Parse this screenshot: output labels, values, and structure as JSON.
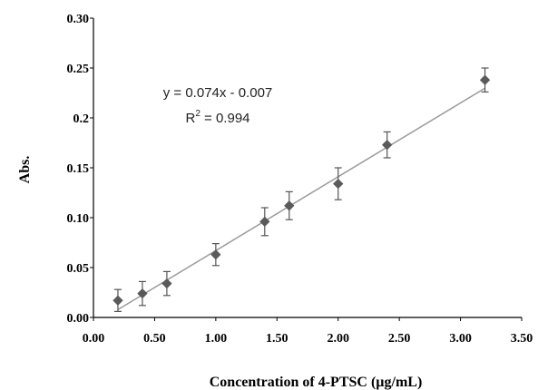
{
  "chart_data": {
    "type": "scatter",
    "title": "",
    "xlabel": "Concentration of 4-PTSC (µg/mL)",
    "ylabel": "Abs.",
    "xlim": [
      0,
      3.5
    ],
    "ylim": [
      0,
      0.3
    ],
    "x_ticks": [
      "0.00",
      "0.50",
      "1.00",
      "1.50",
      "2.00",
      "2.50",
      "3.00",
      "3.50"
    ],
    "y_ticks": [
      "0.00",
      "0.05",
      "0.10",
      "0.15",
      "0.2",
      "0.25",
      "0.30"
    ],
    "grid": false,
    "series": [
      {
        "x": [
          0.2,
          0.4,
          0.6,
          1.0,
          1.4,
          1.6,
          2.0,
          2.4,
          3.2
        ],
        "y": [
          0.017,
          0.024,
          0.034,
          0.063,
          0.096,
          0.112,
          0.134,
          0.173,
          0.238
        ],
        "error": [
          0.011,
          0.012,
          0.012,
          0.011,
          0.014,
          0.014,
          0.016,
          0.013,
          0.012
        ]
      }
    ],
    "fit": {
      "slope": 0.074,
      "intercept": -0.007,
      "x_range": [
        0.2,
        3.2
      ]
    },
    "annotations": {
      "equation": "y = 0.074x - 0.007",
      "r2_prefix": "R",
      "r2_exp": "2",
      "r2_rest": " = 0.994"
    }
  }
}
